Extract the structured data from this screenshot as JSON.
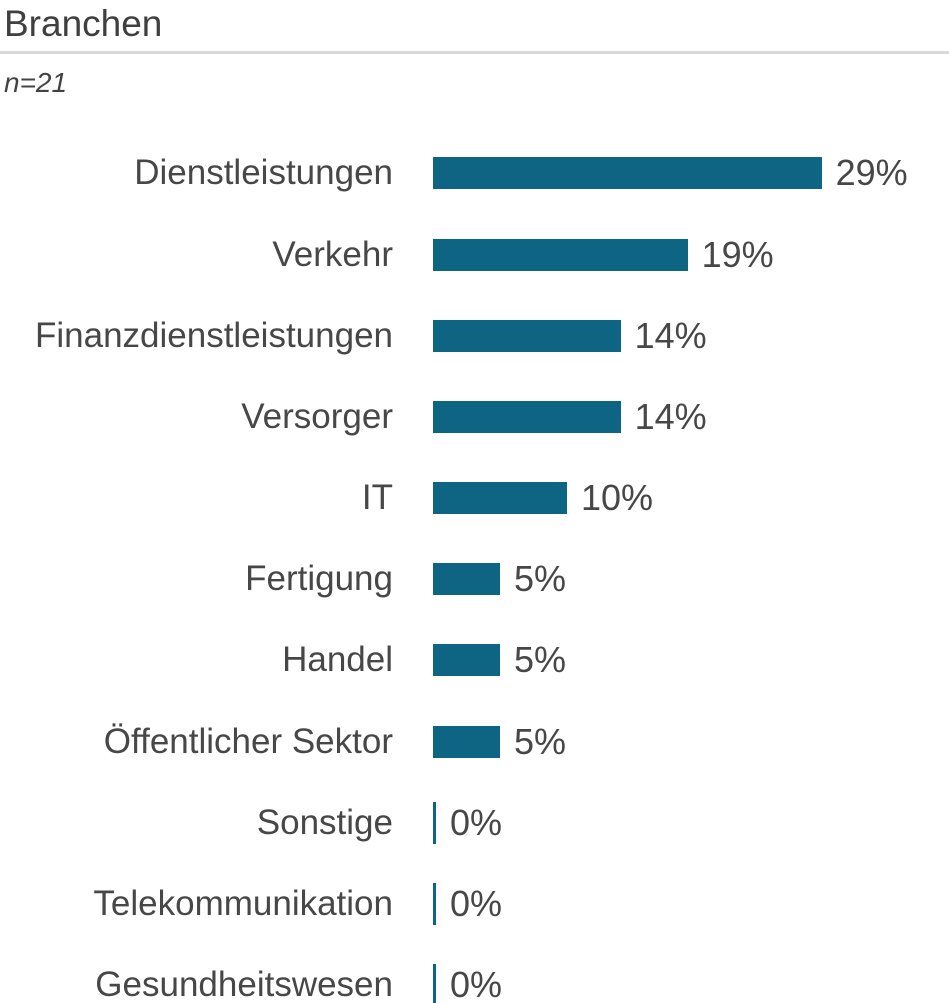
{
  "header": {
    "title": "Branchen",
    "subtitle": "n=21"
  },
  "chart_data": {
    "type": "bar",
    "orientation": "horizontal",
    "title": "Branchen",
    "sample_size_note": "n=21",
    "categories": [
      "Dienstleistungen",
      "Verkehr",
      "Finanzdienstleistungen",
      "Versorger",
      "IT",
      "Fertigung",
      "Handel",
      "Öffentlicher Sektor",
      "Sonstige",
      "Telekommunikation",
      "Gesundheitswesen"
    ],
    "values": [
      29,
      19,
      14,
      14,
      10,
      5,
      5,
      5,
      0,
      0,
      0
    ],
    "data_labels": [
      "29%",
      "19%",
      "14%",
      "14%",
      "10%",
      "5%",
      "5%",
      "5%",
      "0%",
      "0%",
      "0%"
    ],
    "unit": "%",
    "xlim": [
      0,
      29
    ],
    "legend": "none",
    "grid": false,
    "bar_color": "#0d6483",
    "text_color": "#474747",
    "divider_color": "#d9d9d9"
  }
}
